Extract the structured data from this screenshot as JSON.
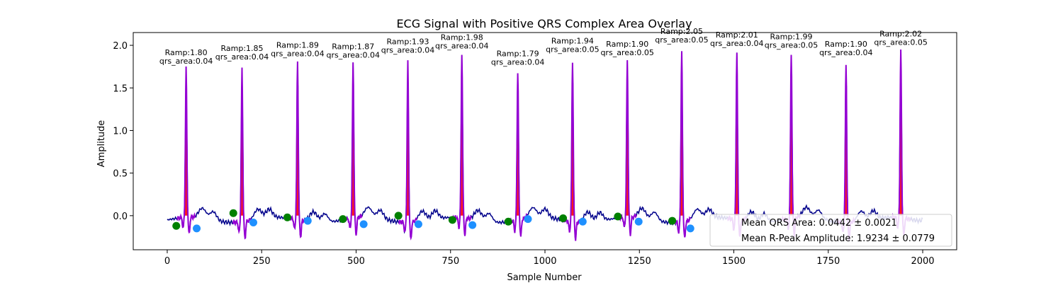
{
  "chart_data": {
    "type": "line",
    "title": "ECG Signal with Positive QRS Complex Area Overlay",
    "xlabel": "Sample Number",
    "ylabel": "Amplitude",
    "xlim": [
      -90,
      2090
    ],
    "ylim": [
      -0.4,
      2.15
    ],
    "x_ticks": [
      0,
      250,
      500,
      750,
      1000,
      1250,
      1500,
      1750,
      2000
    ],
    "y_ticks": [
      0.0,
      0.5,
      1.0,
      1.5,
      2.0
    ],
    "y_tick_labels": [
      "0.0",
      "0.5",
      "1.0",
      "1.5",
      "2.0"
    ],
    "grid": false,
    "colors": {
      "signal": "#00008b",
      "qrs_area_fill": "#ff0000",
      "qrs_outline": "#9400d3",
      "onset_marker": "#008000",
      "offset_marker": "#1e90ff"
    },
    "beats": [
      {
        "r_peak_x": 50,
        "r_amp": 1.8,
        "r_amp_label": "Ramp:1.80",
        "qrs_area": 0.04,
        "qrs_area_label": "qrs_area:0.04",
        "onset": [
          24,
          -0.12
        ],
        "offset": [
          78,
          -0.15
        ]
      },
      {
        "r_peak_x": 198,
        "r_amp": 1.85,
        "r_amp_label": "Ramp:1.85",
        "qrs_area": 0.04,
        "qrs_area_label": "qrs_area:0.04",
        "onset": [
          175,
          0.03
        ],
        "offset": [
          228,
          -0.08
        ]
      },
      {
        "r_peak_x": 345,
        "r_amp": 1.89,
        "r_amp_label": "Ramp:1.89",
        "qrs_area": 0.04,
        "qrs_area_label": "qrs_area:0.04",
        "onset": [
          318,
          -0.02
        ],
        "offset": [
          372,
          -0.06
        ]
      },
      {
        "r_peak_x": 492,
        "r_amp": 1.87,
        "r_amp_label": "Ramp:1.87",
        "qrs_area": 0.04,
        "qrs_area_label": "qrs_area:0.04",
        "onset": [
          465,
          -0.04
        ],
        "offset": [
          520,
          -0.1
        ]
      },
      {
        "r_peak_x": 637,
        "r_amp": 1.93,
        "r_amp_label": "Ramp:1.93",
        "qrs_area": 0.04,
        "qrs_area_label": "qrs_area:0.04",
        "onset": [
          612,
          0.0
        ],
        "offset": [
          665,
          -0.1
        ]
      },
      {
        "r_peak_x": 780,
        "r_amp": 1.98,
        "r_amp_label": "Ramp:1.98",
        "qrs_area": 0.04,
        "qrs_area_label": "qrs_area:0.04",
        "onset": [
          755,
          -0.05
        ],
        "offset": [
          808,
          -0.11
        ]
      },
      {
        "r_peak_x": 928,
        "r_amp": 1.79,
        "r_amp_label": "Ramp:1.79",
        "qrs_area": 0.04,
        "qrs_area_label": "qrs_area:0.04",
        "onset": [
          903,
          -0.07
        ],
        "offset": [
          955,
          -0.04
        ]
      },
      {
        "r_peak_x": 1073,
        "r_amp": 1.94,
        "r_amp_label": "Ramp:1.94",
        "qrs_area": 0.05,
        "qrs_area_label": "qrs_area:0.05",
        "onset": [
          1048,
          -0.03
        ],
        "offset": [
          1100,
          -0.07
        ]
      },
      {
        "r_peak_x": 1218,
        "r_amp": 1.9,
        "r_amp_label": "Ramp:1.90",
        "qrs_area": 0.05,
        "qrs_area_label": "qrs_area:0.05",
        "onset": [
          1193,
          -0.01
        ],
        "offset": [
          1248,
          -0.07
        ]
      },
      {
        "r_peak_x": 1362,
        "r_amp": 2.05,
        "r_amp_label": "Ramp:2.05",
        "qrs_area": 0.05,
        "qrs_area_label": "qrs_area:0.05",
        "onset": [
          1337,
          -0.06
        ],
        "offset": [
          1385,
          -0.15
        ]
      },
      {
        "r_peak_x": 1508,
        "r_amp": 2.01,
        "r_amp_label": "Ramp:2.01",
        "qrs_area": 0.04,
        "qrs_area_label": "qrs_area:0.04",
        "onset": null,
        "offset": null
      },
      {
        "r_peak_x": 1652,
        "r_amp": 1.99,
        "r_amp_label": "Ramp:1.99",
        "qrs_area": 0.05,
        "qrs_area_label": "qrs_area:0.05",
        "onset": null,
        "offset": null
      },
      {
        "r_peak_x": 1797,
        "r_amp": 1.9,
        "r_amp_label": "Ramp:1.90",
        "qrs_area": 0.04,
        "qrs_area_label": "qrs_area:0.04",
        "onset": null,
        "offset": null
      },
      {
        "r_peak_x": 1942,
        "r_amp": 2.02,
        "r_amp_label": "Ramp:2.02",
        "qrs_area": 0.05,
        "qrs_area_label": "qrs_area:0.05",
        "onset": null,
        "offset": null
      }
    ],
    "legend": {
      "location": "lower right",
      "entries": [
        "Mean QRS Area: 0.0442 ± 0.0021",
        "Mean R-Peak Amplitude: 1.9234 ± 0.0779"
      ]
    }
  }
}
